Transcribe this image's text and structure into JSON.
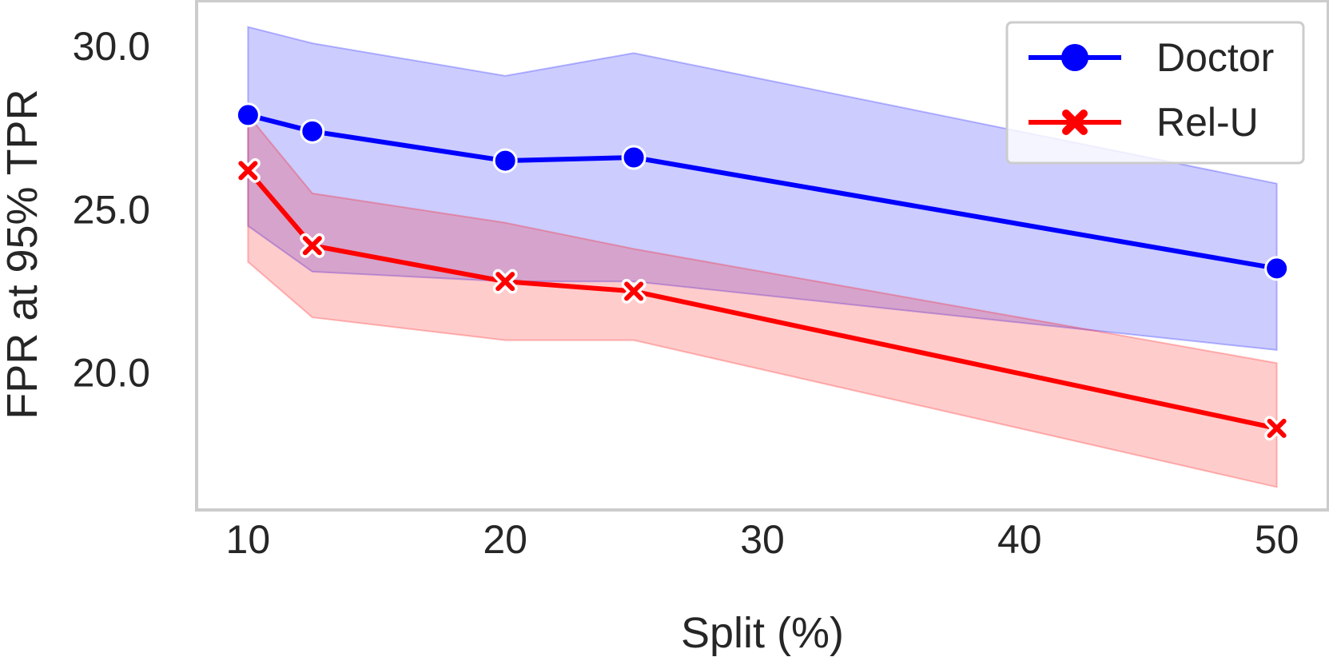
{
  "chart_data": {
    "type": "line",
    "title": "",
    "xlabel": "Split (%)",
    "ylabel": "FPR at 95% TPR",
    "x_ticks": [
      10,
      20,
      30,
      40,
      50
    ],
    "x_tick_labels": [
      "10",
      "20",
      "30",
      "40",
      "50"
    ],
    "y_ticks": [
      20,
      25,
      30
    ],
    "y_tick_labels": [
      "20.0",
      "25.0",
      "30.0"
    ],
    "xlim": [
      8,
      52
    ],
    "ylim": [
      15.8,
      31.4
    ],
    "grid": false,
    "legend_position": "top-right",
    "series": [
      {
        "name": "Doctor",
        "color": "#0000ff",
        "marker": "circle",
        "x": [
          10,
          12.5,
          20,
          25,
          50
        ],
        "values": [
          27.9,
          27.4,
          26.5,
          26.6,
          23.2
        ],
        "upper": [
          30.6,
          30.1,
          29.1,
          29.8,
          25.8
        ],
        "lower": [
          24.5,
          23.1,
          22.8,
          22.8,
          20.7
        ]
      },
      {
        "name": "Rel-U",
        "color": "#ff0000",
        "marker": "x",
        "x": [
          10,
          12.5,
          20,
          25,
          50
        ],
        "values": [
          26.2,
          23.9,
          22.8,
          22.5,
          18.3
        ],
        "upper": [
          27.9,
          25.5,
          24.6,
          23.8,
          20.3
        ],
        "lower": [
          23.4,
          21.7,
          21.0,
          21.0,
          16.5
        ]
      }
    ]
  }
}
